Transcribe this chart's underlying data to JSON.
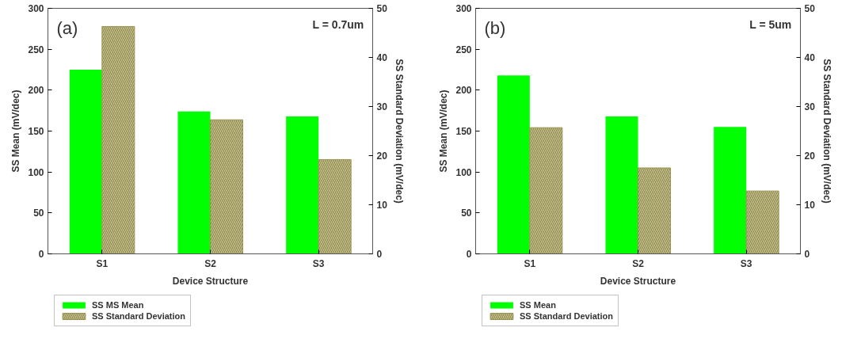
{
  "chart_data": [
    {
      "type": "bar",
      "categories": [
        "S1",
        "S2",
        "S3"
      ],
      "xlabel": "Device Structure",
      "ylabel": "SS Mean (mV/dec)",
      "y2label": "SS Standard Deviation (mV/dec)",
      "annotations": [
        "(a)",
        "L = 0.7um"
      ],
      "ylim": [
        0,
        300
      ],
      "yticks": [
        0,
        50,
        100,
        150,
        200,
        250,
        300
      ],
      "y2lim": [
        0,
        50
      ],
      "y2ticks": [
        0,
        10,
        20,
        30,
        40,
        50
      ],
      "legend": "bottom",
      "grid": false,
      "series": [
        {
          "name": "SS MS Mean",
          "color": "#00ff00",
          "values": [
            225,
            174,
            168
          ]
        },
        {
          "name": "SS Standard Deviation",
          "color": "#c9c48e",
          "axis": "y2",
          "values": [
            46.3,
            27.3,
            19.2
          ]
        }
      ]
    },
    {
      "type": "bar",
      "categories": [
        "S1",
        "S2",
        "S3"
      ],
      "xlabel": "Device Structure",
      "ylabel": "SS Mean (mV/dec)",
      "y2label": "SS Standard Deviation (mV/dec)",
      "annotations": [
        "(b)",
        "L = 5um"
      ],
      "ylim": [
        0,
        300
      ],
      "yticks": [
        0,
        50,
        100,
        150,
        200,
        250,
        300
      ],
      "y2lim": [
        0,
        50
      ],
      "y2ticks": [
        0,
        10,
        20,
        30,
        40,
        50
      ],
      "legend": "bottom",
      "grid": false,
      "series": [
        {
          "name": "SS Mean",
          "color": "#00ff00",
          "values": [
            218,
            168,
            155
          ]
        },
        {
          "name": "SS Standard Deviation",
          "color": "#c9c48e",
          "axis": "y2",
          "values": [
            25.7,
            17.5,
            12.8
          ]
        }
      ]
    }
  ]
}
